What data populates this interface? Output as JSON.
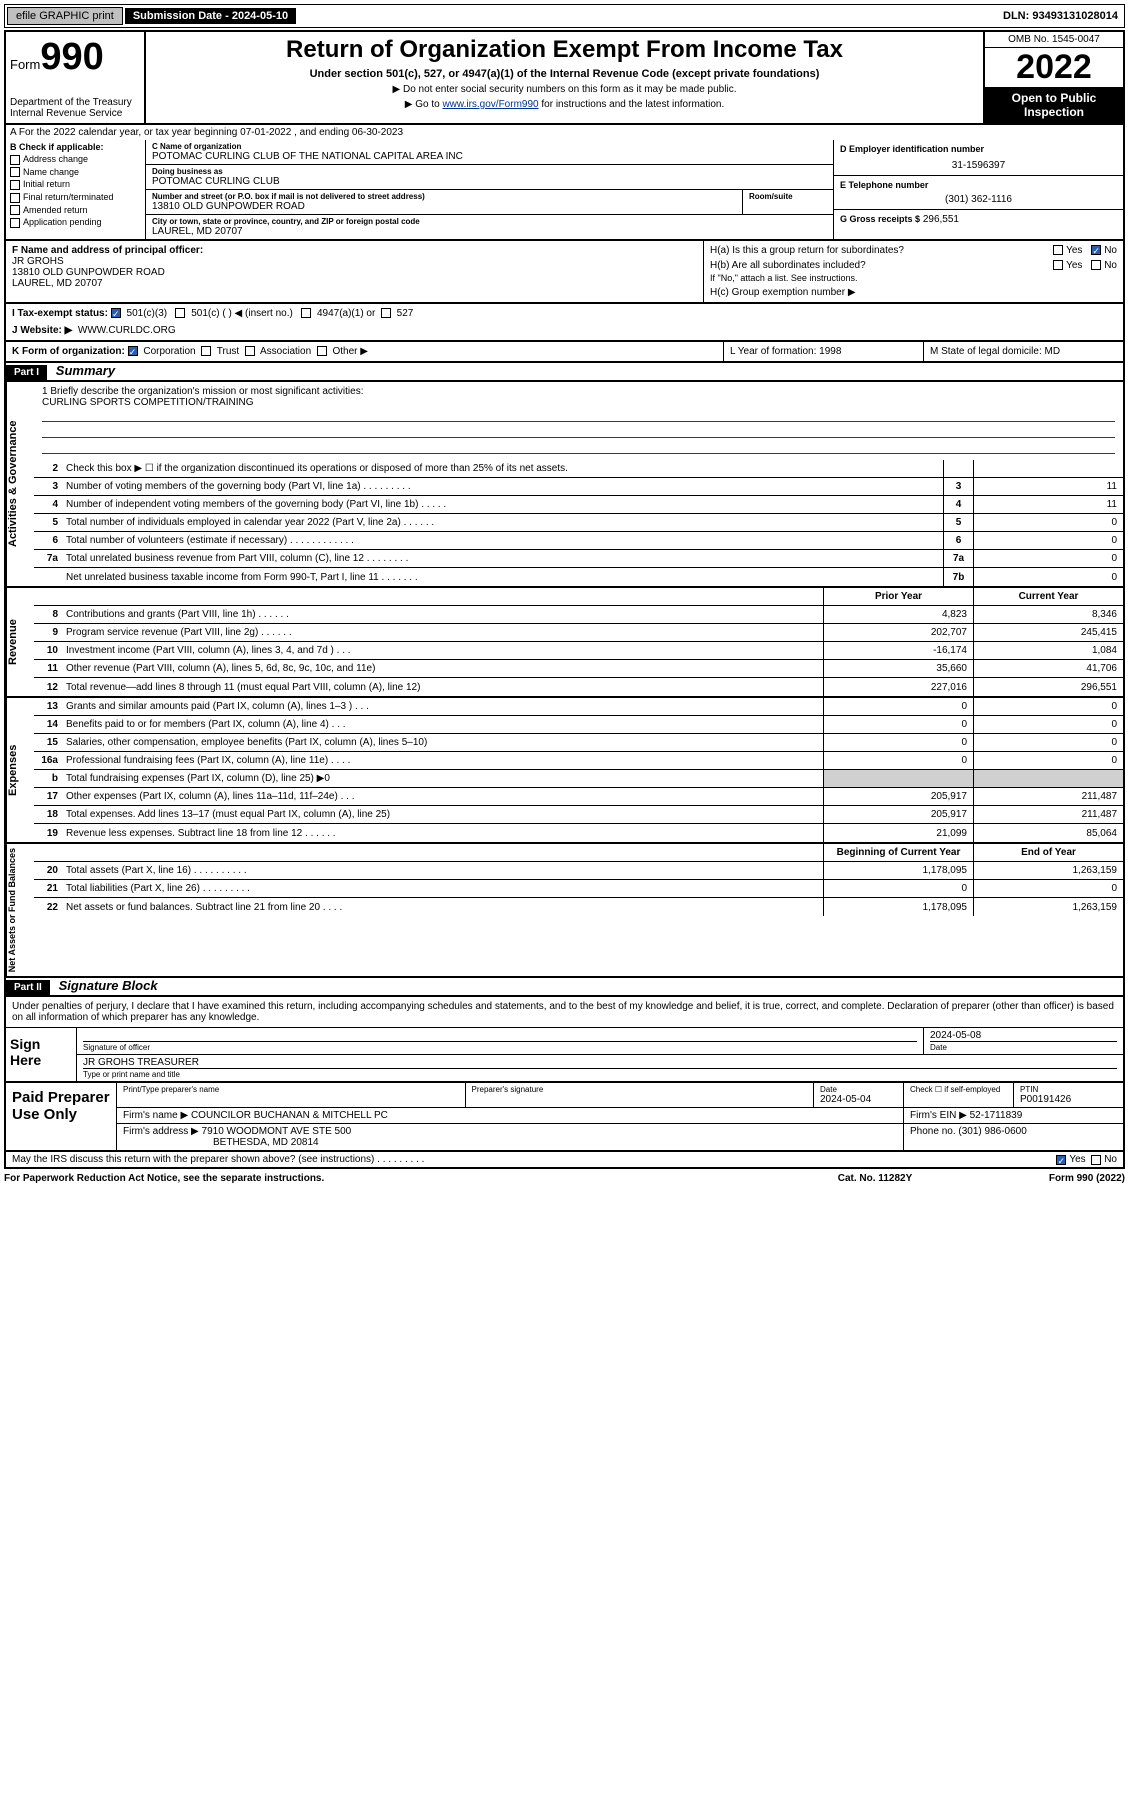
{
  "topbar": {
    "efile": "efile GRAPHIC print",
    "subdate_lbl": "Submission Date - 2024-05-10",
    "dln": "DLN: 93493131028014"
  },
  "head": {
    "form": "Form",
    "formno": "990",
    "dept": "Department of the Treasury",
    "irs": "Internal Revenue Service",
    "title": "Return of Organization Exempt From Income Tax",
    "sub": "Under section 501(c), 527, or 4947(a)(1) of the Internal Revenue Code (except private foundations)",
    "inst1": "▶ Do not enter social security numbers on this form as it may be made public.",
    "inst2a": "▶ Go to ",
    "inst2link": "www.irs.gov/Form990",
    "inst2b": " for instructions and the latest information.",
    "omb": "OMB No. 1545-0047",
    "year": "2022",
    "inspect": "Open to Public Inspection"
  },
  "A": {
    "text": "A For the 2022 calendar year, or tax year beginning 07-01-2022   , and ending 06-30-2023"
  },
  "B": {
    "lbl": "B Check if applicable:",
    "items": [
      "Address change",
      "Name change",
      "Initial return",
      "Final return/terminated",
      "Amended return",
      "Application pending"
    ]
  },
  "C": {
    "name_lbl": "C Name of organization",
    "name": "POTOMAC CURLING CLUB OF THE NATIONAL CAPITAL AREA INC",
    "dba_lbl": "Doing business as",
    "dba": "POTOMAC CURLING CLUB",
    "addr_lbl": "Number and street (or P.O. box if mail is not delivered to street address)",
    "addr": "13810 OLD GUNPOWDER ROAD",
    "room_lbl": "Room/suite",
    "city_lbl": "City or town, state or province, country, and ZIP or foreign postal code",
    "city": "LAUREL, MD  20707"
  },
  "D": {
    "lbl": "D Employer identification number",
    "val": "31-1596397"
  },
  "E": {
    "lbl": "E Telephone number",
    "val": "(301) 362-1116"
  },
  "G": {
    "lbl": "G Gross receipts $",
    "val": "296,551"
  },
  "F": {
    "lbl": "F Name and address of principal officer:",
    "name": "JR GROHS",
    "addr1": "13810 OLD GUNPOWDER ROAD",
    "addr2": "LAUREL, MD  20707"
  },
  "H": {
    "Ha": "H(a)  Is this a group return for subordinates?",
    "Hb": "H(b)  Are all subordinates included?",
    "Hbnote": "If \"No,\" attach a list. See instructions.",
    "Hc": "H(c)  Group exemption number ▶",
    "yes": "Yes",
    "no": "No"
  },
  "I": {
    "lbl": "I   Tax-exempt status:",
    "o1": "501(c)(3)",
    "o2": "501(c) (  ) ◀ (insert no.)",
    "o3": "4947(a)(1) or",
    "o4": "527"
  },
  "J": {
    "lbl": "J   Website: ▶",
    "val": "WWW.CURLDC.ORG"
  },
  "K": {
    "lbl": "K Form of organization:",
    "o1": "Corporation",
    "o2": "Trust",
    "o3": "Association",
    "o4": "Other ▶",
    "L": "L Year of formation: 1998",
    "M": "M State of legal domicile: MD"
  },
  "partI": {
    "bar": "Part I",
    "title": "Summary"
  },
  "mission": {
    "lbl": "1   Briefly describe the organization's mission or most significant activities:",
    "text": "CURLING SPORTS COMPETITION/TRAINING"
  },
  "sum": {
    "gov_rows": [
      {
        "n": "2",
        "t": "Check this box ▶ ☐  if the organization discontinued its operations or disposed of more than 25% of its net assets.",
        "box": "",
        "v": ""
      },
      {
        "n": "3",
        "t": "Number of voting members of the governing body (Part VI, line 1a)   .     .     .     .     .     .     .     .     .",
        "box": "3",
        "v": "11"
      },
      {
        "n": "4",
        "t": "Number of independent voting members of the governing body (Part VI, line 1b)   .     .     .     .     .",
        "box": "4",
        "v": "11"
      },
      {
        "n": "5",
        "t": "Total number of individuals employed in calendar year 2022 (Part V, line 2a)   .     .     .     .     .     .",
        "box": "5",
        "v": "0"
      },
      {
        "n": "6",
        "t": "Total number of volunteers (estimate if necessary)   .     .     .     .     .     .     .     .     .     .     .     .",
        "box": "6",
        "v": "0"
      },
      {
        "n": "7a",
        "t": "Total unrelated business revenue from Part VIII, column (C), line 12   .     .     .     .     .     .     .     .",
        "box": "7a",
        "v": "0"
      },
      {
        "n": "",
        "t": "Net unrelated business taxable income from Form 990-T, Part I, line 11   .     .     .     .     .     .     .",
        "box": "7b",
        "v": "0"
      }
    ],
    "header_prior": "Prior Year",
    "header_curr": "Current Year",
    "rev_rows": [
      {
        "n": "8",
        "t": "Contributions and grants (Part VIII, line 1h)   .     .     .     .     .     .",
        "p": "4,823",
        "c": "8,346"
      },
      {
        "n": "9",
        "t": "Program service revenue (Part VIII, line 2g)   .     .     .     .     .     .",
        "p": "202,707",
        "c": "245,415"
      },
      {
        "n": "10",
        "t": "Investment income (Part VIII, column (A), lines 3, 4, and 7d )   .     .     .",
        "p": "-16,174",
        "c": "1,084"
      },
      {
        "n": "11",
        "t": "Other revenue (Part VIII, column (A), lines 5, 6d, 8c, 9c, 10c, and 11e)",
        "p": "35,660",
        "c": "41,706"
      },
      {
        "n": "12",
        "t": "Total revenue—add lines 8 through 11 (must equal Part VIII, column (A), line 12)",
        "p": "227,016",
        "c": "296,551"
      }
    ],
    "exp_rows": [
      {
        "n": "13",
        "t": "Grants and similar amounts paid (Part IX, column (A), lines 1–3 )   .     .     .",
        "p": "0",
        "c": "0"
      },
      {
        "n": "14",
        "t": "Benefits paid to or for members (Part IX, column (A), line 4)   .     .     .",
        "p": "0",
        "c": "0"
      },
      {
        "n": "15",
        "t": "Salaries, other compensation, employee benefits (Part IX, column (A), lines 5–10)",
        "p": "0",
        "c": "0"
      },
      {
        "n": "16a",
        "t": "Professional fundraising fees (Part IX, column (A), line 11e)   .     .     .     .",
        "p": "0",
        "c": "0"
      },
      {
        "n": "b",
        "t": "Total fundraising expenses (Part IX, column (D), line 25) ▶0",
        "p": "",
        "c": "",
        "grey": true
      },
      {
        "n": "17",
        "t": "Other expenses (Part IX, column (A), lines 11a–11d, 11f–24e)   .     .     .",
        "p": "205,917",
        "c": "211,487"
      },
      {
        "n": "18",
        "t": "Total expenses. Add lines 13–17 (must equal Part IX, column (A), line 25)",
        "p": "205,917",
        "c": "211,487"
      },
      {
        "n": "19",
        "t": "Revenue less expenses. Subtract line 18 from line 12   .     .     .     .     .     .",
        "p": "21,099",
        "c": "85,064"
      }
    ],
    "header_begin": "Beginning of Current Year",
    "header_end": "End of Year",
    "net_rows": [
      {
        "n": "20",
        "t": "Total assets (Part X, line 16)   .     .     .     .     .     .     .     .     .     .",
        "p": "1,178,095",
        "c": "1,263,159"
      },
      {
        "n": "21",
        "t": "Total liabilities (Part X, line 26)   .     .     .     .     .     .     .     .     .",
        "p": "0",
        "c": "0"
      },
      {
        "n": "22",
        "t": "Net assets or fund balances. Subtract line 21 from line 20   .     .     .     .",
        "p": "1,178,095",
        "c": "1,263,159"
      }
    ],
    "vtabs": {
      "gov": "Activities & Governance",
      "rev": "Revenue",
      "exp": "Expenses",
      "net": "Net Assets or Fund Balances"
    }
  },
  "partII": {
    "bar": "Part II",
    "title": "Signature Block"
  },
  "sig": {
    "decl": "Under penalties of perjury, I declare that I have examined this return, including accompanying schedules and statements, and to the best of my knowledge and belief, it is true, correct, and complete. Declaration of preparer (other than officer) is based on all information of which preparer has any knowledge.",
    "sign_here": "Sign Here",
    "sig_lbl": "Signature of officer",
    "date_lbl": "Date",
    "date": "2024-05-08",
    "name": "JR GROHS  TREASURER",
    "name_lbl": "Type or print name and title",
    "paid": "Paid Preparer Use Only",
    "prep_name_lbl": "Print/Type preparer's name",
    "prep_sig_lbl": "Preparer's signature",
    "prep_date_lbl": "Date",
    "prep_date": "2024-05-04",
    "check_lbl": "Check ☐ if self-employed",
    "ptin_lbl": "PTIN",
    "ptin": "P00191426",
    "firm_name_lbl": "Firm's name   ▶",
    "firm_name": "COUNCILOR BUCHANAN & MITCHELL PC",
    "firm_ein_lbl": "Firm's EIN ▶",
    "firm_ein": "52-1711839",
    "firm_addr_lbl": "Firm's address ▶",
    "firm_addr": "7910 WOODMONT AVE STE 500",
    "firm_city": "BETHESDA, MD  20814",
    "phone_lbl": "Phone no.",
    "phone": "(301) 986-0600",
    "may": "May the IRS discuss this return with the preparer shown above? (see instructions)   .     .     .     .     .     .     .     .     .",
    "yes": "Yes",
    "no": "No"
  },
  "footer": {
    "pra": "For Paperwork Reduction Act Notice, see the separate instructions.",
    "cat": "Cat. No. 11282Y",
    "form": "Form 990 (2022)"
  }
}
